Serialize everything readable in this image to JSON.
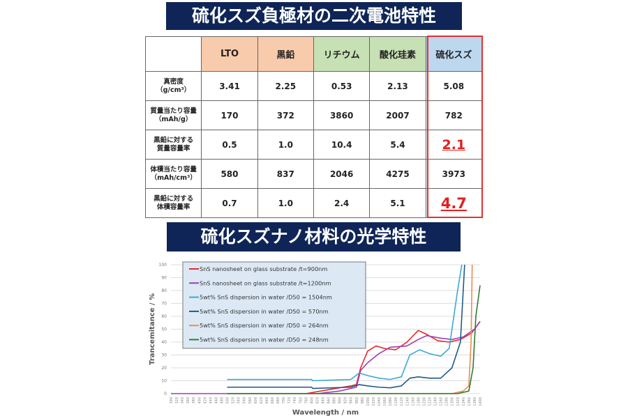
{
  "titles": {
    "battery": "硫化スズ負極材の二次電池特性",
    "optical": "硫化スズナノ材料の光学特性"
  },
  "table": {
    "columns": [
      "LTO",
      "黒鉛",
      "リチウム",
      "酸化珪素",
      "硫化スズ"
    ],
    "rows": [
      {
        "label1": "真密度",
        "label2": "（g/cm³）",
        "values": [
          "3.41",
          "2.25",
          "0.53",
          "2.13",
          "5.08"
        ]
      },
      {
        "label1": "質量当たり容量",
        "label2": "（mAh/g）",
        "values": [
          "170",
          "372",
          "3860",
          "2007",
          "782"
        ]
      },
      {
        "label1": "黒鉛に対する",
        "label2": "質量容量率",
        "values": [
          "0.5",
          "1.0",
          "10.4",
          "5.4",
          "2.1"
        ]
      },
      {
        "label1": "体積当たり容量",
        "label2": "（mAh/cm³）",
        "values": [
          "580",
          "837",
          "2046",
          "4275",
          "3973"
        ]
      },
      {
        "label1": "黒鉛に対する",
        "label2": "体積容量率",
        "values": [
          "0.7",
          "1.0",
          "2.4",
          "5.1",
          "4.7"
        ]
      }
    ]
  },
  "chart_data": {
    "type": "line",
    "xlabel": "Wavelength / nm",
    "ylabel": "Trancemitance / %",
    "xlim": [
      300,
      1400
    ],
    "ylim": [
      0,
      100
    ],
    "xtick_step": 20,
    "ytick_step": 10,
    "grid": true,
    "legend": "top-left",
    "series": [
      {
        "name": "SnS nanosheet on glass substrate /t=900nm",
        "color": "#e8262a",
        "points": [
          [
            780,
            0
          ],
          [
            860,
            3
          ],
          [
            940,
            6
          ],
          [
            960,
            7
          ],
          [
            975,
            20
          ],
          [
            1000,
            33
          ],
          [
            1030,
            37
          ],
          [
            1060,
            35
          ],
          [
            1100,
            34
          ],
          [
            1140,
            40
          ],
          [
            1180,
            49
          ],
          [
            1210,
            46
          ],
          [
            1250,
            41
          ],
          [
            1290,
            40
          ],
          [
            1330,
            42
          ],
          [
            1370,
            47
          ],
          [
            1400,
            56
          ]
        ]
      },
      {
        "name": "SnS nanosheet on glass substrate /t=1200nm",
        "color": "#9b3fb0",
        "points": [
          [
            300,
            0
          ],
          [
            500,
            0
          ],
          [
            820,
            0
          ],
          [
            900,
            2
          ],
          [
            960,
            5
          ],
          [
            975,
            18
          ],
          [
            1000,
            24
          ],
          [
            1040,
            31
          ],
          [
            1080,
            36
          ],
          [
            1140,
            37
          ],
          [
            1180,
            42
          ],
          [
            1210,
            45
          ],
          [
            1260,
            43
          ],
          [
            1300,
            42
          ],
          [
            1340,
            44
          ],
          [
            1380,
            50
          ],
          [
            1400,
            56
          ]
        ]
      },
      {
        "name": "5wt% SnS dispersion in water /D50 = 1504nm",
        "color": "#3aa9d8",
        "points": [
          [
            500,
            11
          ],
          [
            800,
            11
          ],
          [
            805,
            10
          ],
          [
            940,
            11
          ],
          [
            970,
            16
          ],
          [
            1000,
            14
          ],
          [
            1040,
            12
          ],
          [
            1080,
            11
          ],
          [
            1120,
            13
          ],
          [
            1150,
            30
          ],
          [
            1185,
            34
          ],
          [
            1220,
            31
          ],
          [
            1260,
            29
          ],
          [
            1290,
            35
          ],
          [
            1320,
            80
          ],
          [
            1335,
            100
          ]
        ]
      },
      {
        "name": "5wt% SnS dispersion in water /D50 = 570nm",
        "color": "#1f5a85",
        "points": [
          [
            500,
            5
          ],
          [
            800,
            5
          ],
          [
            805,
            4
          ],
          [
            940,
            5
          ],
          [
            970,
            7
          ],
          [
            1000,
            6
          ],
          [
            1040,
            5
          ],
          [
            1080,
            4.5
          ],
          [
            1120,
            6
          ],
          [
            1150,
            12
          ],
          [
            1180,
            13
          ],
          [
            1220,
            12
          ],
          [
            1260,
            12
          ],
          [
            1300,
            20
          ],
          [
            1330,
            40
          ],
          [
            1345,
            100
          ]
        ]
      },
      {
        "name": "5wt% SnS dispersion in water /D50 = 264nm",
        "color": "#f08a4b",
        "points": [
          [
            500,
            0
          ],
          [
            1300,
            0
          ],
          [
            1340,
            2
          ],
          [
            1360,
            6
          ],
          [
            1368,
            40
          ],
          [
            1372,
            100
          ]
        ]
      },
      {
        "name": "5wt% SnS dispersion in water /D50 = 248nm",
        "color": "#2e7d32",
        "points": [
          [
            500,
            0
          ],
          [
            1320,
            0
          ],
          [
            1360,
            2
          ],
          [
            1375,
            20
          ],
          [
            1385,
            60
          ],
          [
            1400,
            84
          ]
        ]
      }
    ]
  }
}
